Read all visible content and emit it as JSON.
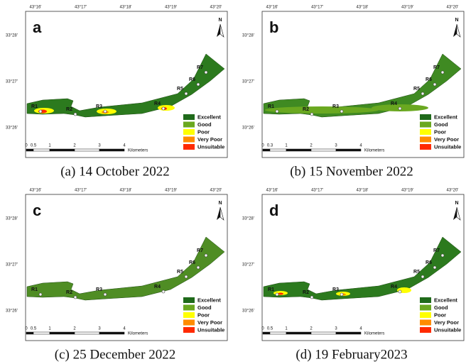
{
  "panels": [
    {
      "letter": "a",
      "caption": "(a) 14 October 2022",
      "scale_labels": [
        "0",
        "0.5",
        "1",
        "2",
        "3",
        "4"
      ],
      "river_color": "#2c7a1e"
    },
    {
      "letter": "b",
      "caption": "(b) 15 November 2022",
      "scale_labels": [
        "0",
        "0.3",
        "1",
        "2",
        "3",
        "4"
      ],
      "river_color": "#3f8a22"
    },
    {
      "letter": "c",
      "caption": "(c) 25 December 2022",
      "scale_labels": [
        "0",
        "0.5",
        "1",
        "2",
        "3",
        "4"
      ],
      "river_color": "#4f8d24"
    },
    {
      "letter": "d",
      "caption": "(d) 19 February2023",
      "scale_labels": [
        "0",
        "0.5",
        "1",
        "2",
        "3",
        "4"
      ],
      "river_color": "#2c7a1e"
    }
  ],
  "longitudes": [
    "43°16'",
    "43°17'",
    "43°18'",
    "43°19'",
    "43°20'"
  ],
  "latitudes": [
    "33°28'",
    "33°27'",
    "33°26'"
  ],
  "north": "N",
  "sites": [
    "R1",
    "R2",
    "R3",
    "R4",
    "R5",
    "R6",
    "R7"
  ],
  "legend": [
    {
      "label": "Excellent",
      "color": "#1f6a1a"
    },
    {
      "label": "Good",
      "color": "#6aa820"
    },
    {
      "label": "Poor",
      "color": "#ffff00"
    },
    {
      "label": "Very Poor",
      "color": "#ff8c00"
    },
    {
      "label": "Unsuitable",
      "color": "#ff2a00"
    }
  ],
  "scale_unit": "Kilometers"
}
